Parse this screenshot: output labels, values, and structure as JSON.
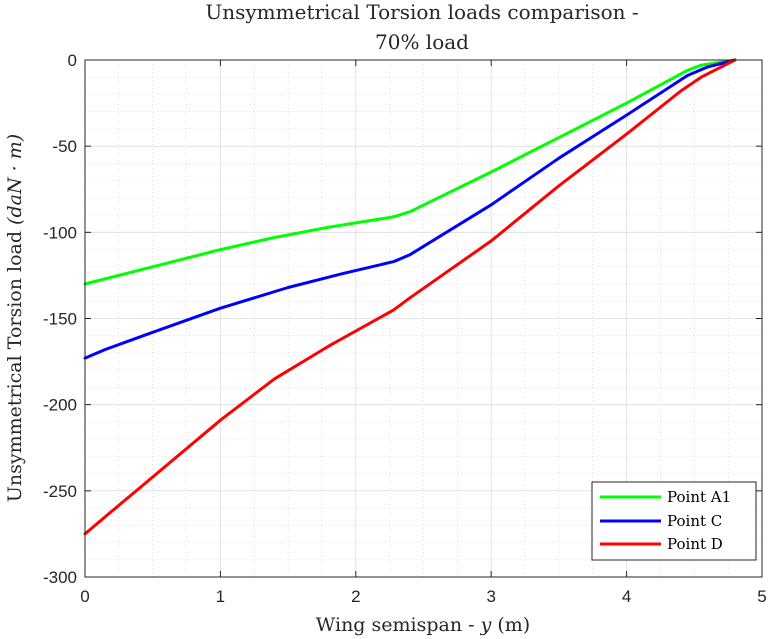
{
  "chart_data": {
    "type": "line",
    "title_line1": "Unsymmetrical Torsion loads comparison -",
    "title_line2": "70% load",
    "xlabel_prefix": "Wing semispan - ",
    "xlabel_var": "y",
    "xlabel_unit": "(m)",
    "ylabel_prefix": "Unsymmetrical Torsion load ",
    "ylabel_unit": "(daN · m)",
    "xlim": [
      0,
      5
    ],
    "ylim": [
      -300,
      0
    ],
    "xticks": [
      0,
      1,
      2,
      3,
      4,
      5
    ],
    "yticks": [
      -300,
      -250,
      -200,
      -150,
      -100,
      -50,
      0
    ],
    "grid": true,
    "minor_grid": true,
    "legend_position": "bottom-right",
    "series": [
      {
        "name": "Point A1",
        "color": "#00ff00",
        "x": [
          0,
          0.5,
          1.0,
          1.4,
          1.8,
          2.28,
          2.4,
          3.0,
          3.5,
          4.0,
          4.45,
          4.55,
          4.8
        ],
        "y": [
          -130,
          -120,
          -110,
          -103,
          -97,
          -91,
          -88,
          -65,
          -45,
          -25,
          -6,
          -3,
          0
        ]
      },
      {
        "name": "Point C",
        "color": "#0000ff",
        "x": [
          0,
          0.15,
          0.5,
          1.0,
          1.5,
          1.9,
          2.28,
          2.4,
          3.0,
          3.5,
          4.0,
          4.45,
          4.6,
          4.8
        ],
        "y": [
          -173,
          -168,
          -158,
          -144,
          -132,
          -124,
          -117,
          -113,
          -84,
          -57,
          -32,
          -9,
          -4,
          0
        ]
      },
      {
        "name": "Point D",
        "color": "#ff0000",
        "x": [
          0,
          0.15,
          0.5,
          1.0,
          1.4,
          1.8,
          2.28,
          2.4,
          3.0,
          3.5,
          4.0,
          4.4,
          4.55,
          4.8
        ],
        "y": [
          -275,
          -265,
          -242,
          -209,
          -185,
          -166,
          -145,
          -138,
          -105,
          -73,
          -43,
          -18,
          -10,
          0
        ]
      }
    ]
  }
}
